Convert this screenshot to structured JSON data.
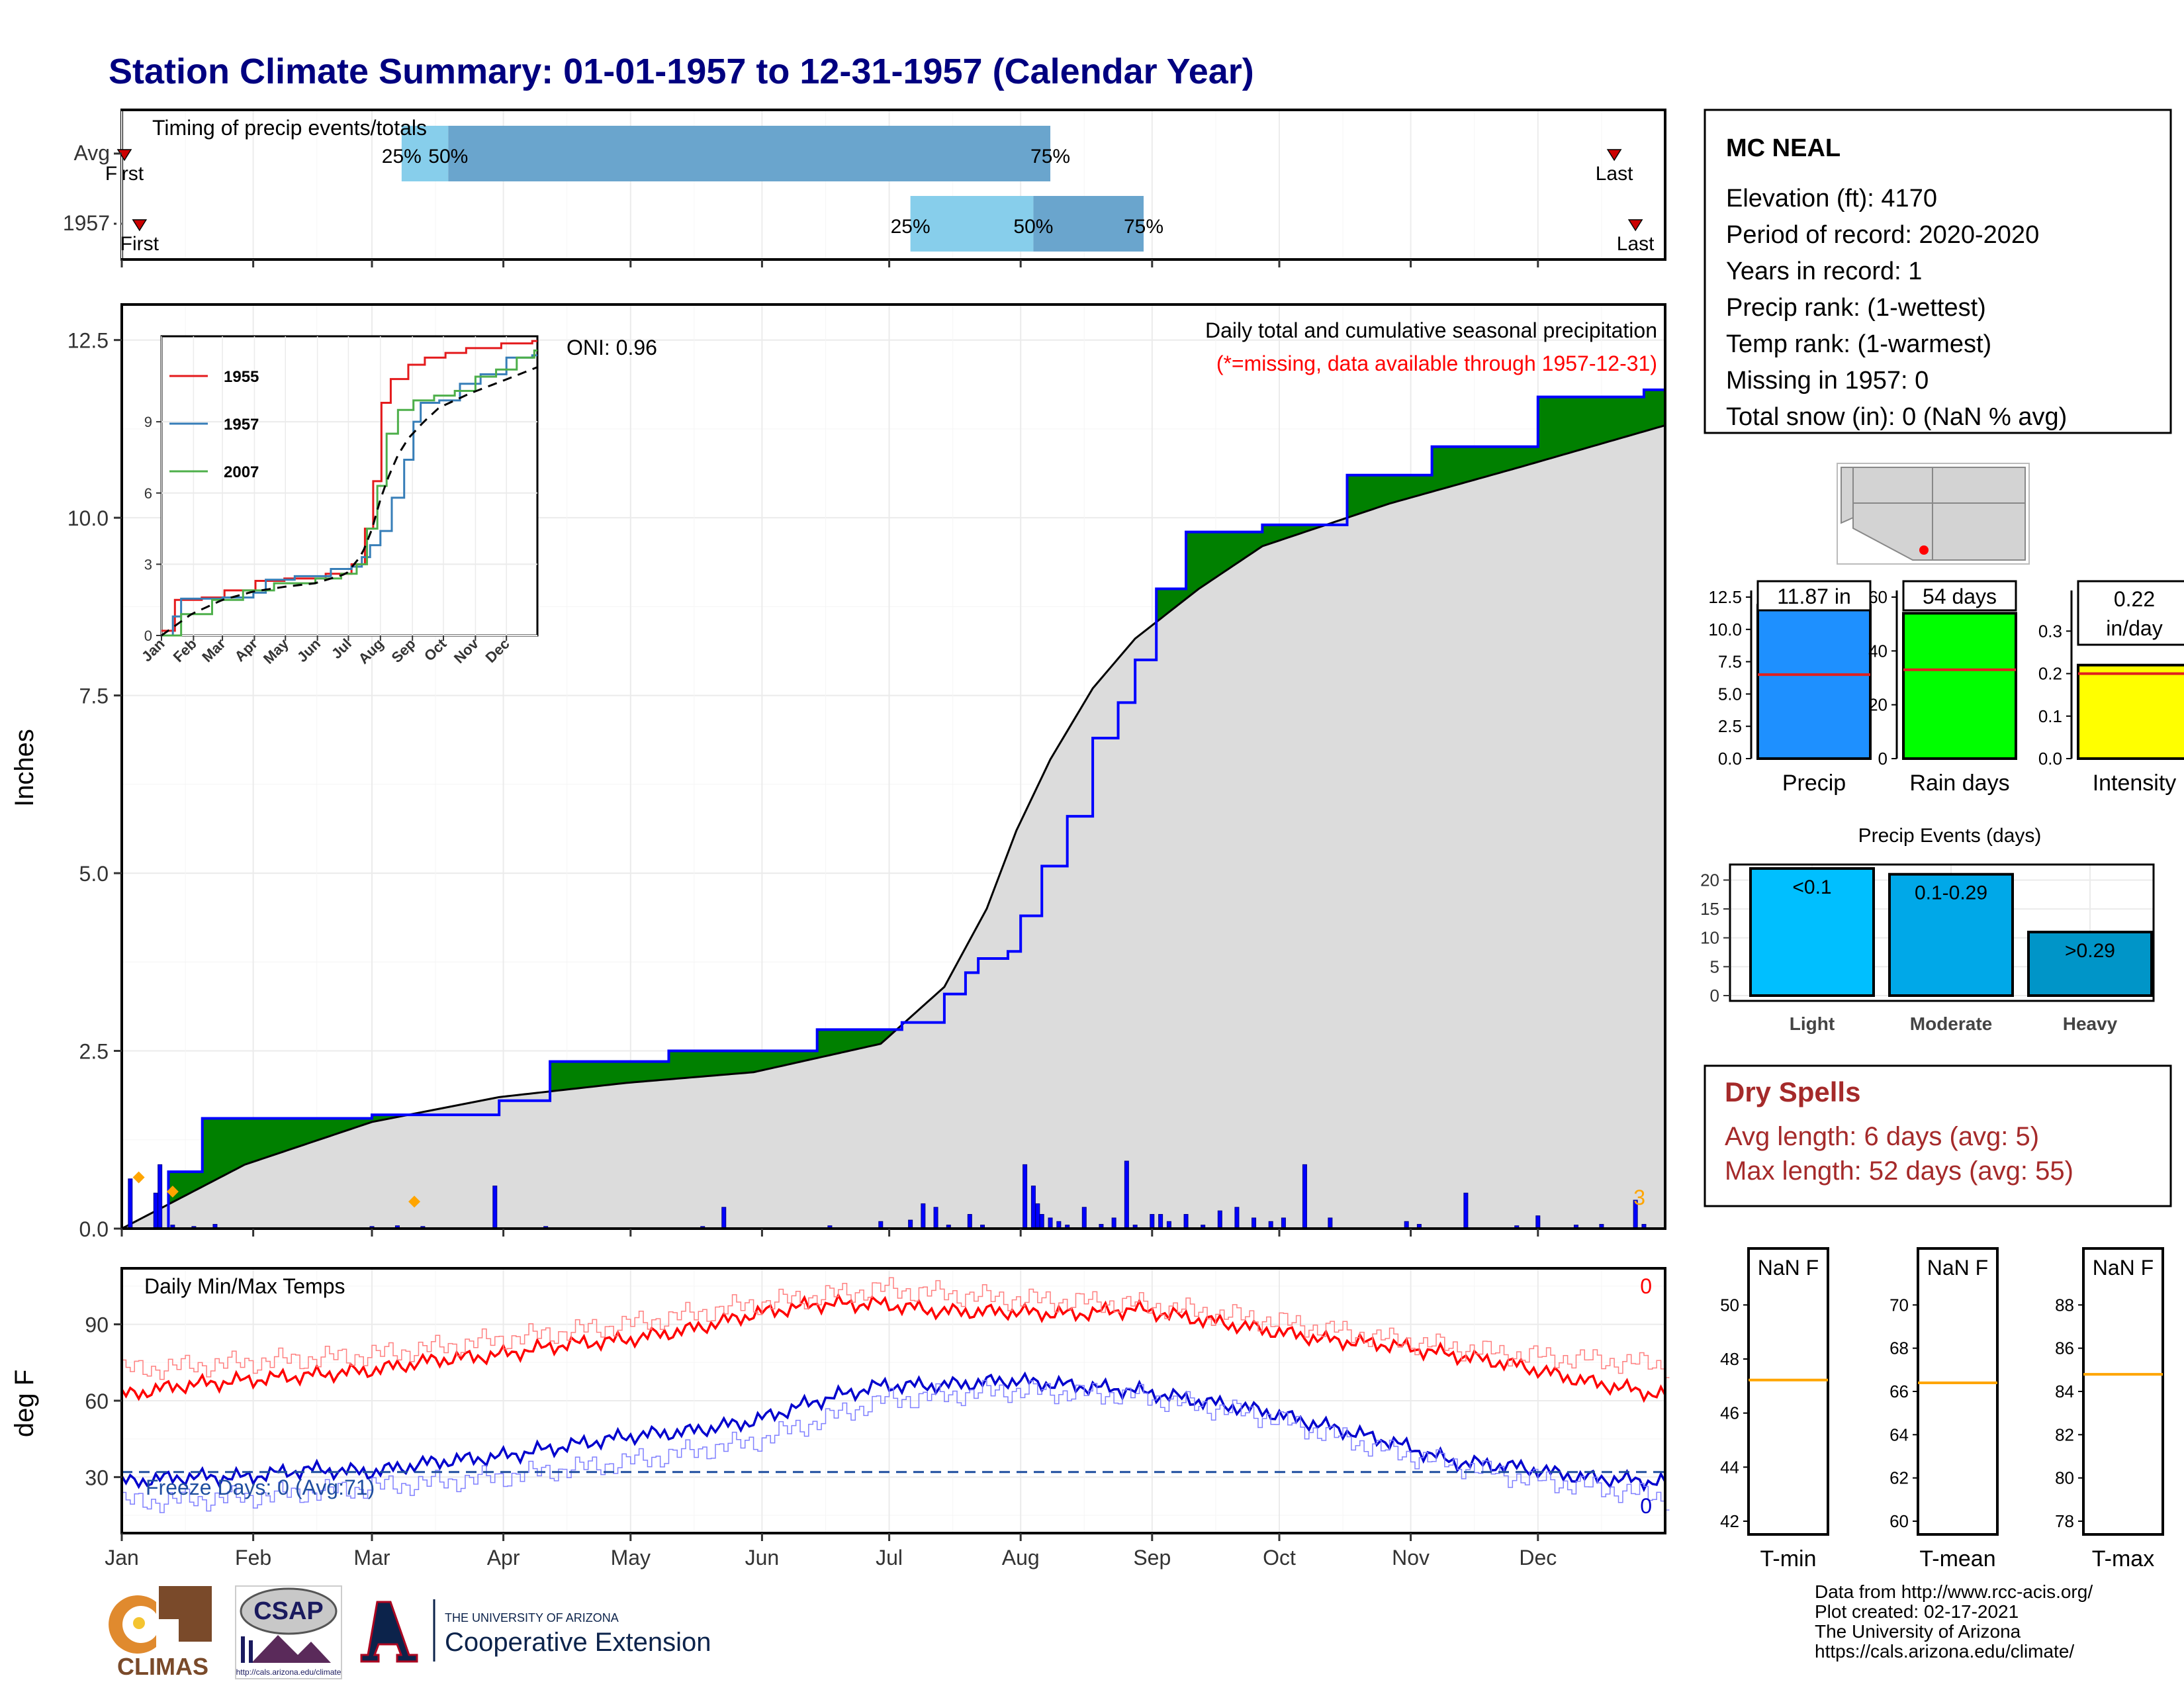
{
  "title": "Station Climate Summary: 01-01-1957 to 12-31-1957 (Calendar Year)",
  "colors": {
    "title": "#000080",
    "precip_fill": "#008000",
    "precip_line": "#0000ff",
    "avg_fill": "#dcdcdc",
    "tmax": "#ff0000",
    "tmin": "#0000cd",
    "freeze_line": "#1f4e9f",
    "dry": "#a52a2a",
    "timing_light": "#87ceeb",
    "timing_dark": "#6aa5cd",
    "orange": "#ffa500"
  },
  "months": [
    "Jan",
    "Feb",
    "Mar",
    "Apr",
    "May",
    "Jun",
    "Jul",
    "Aug",
    "Sep",
    "Oct",
    "Nov",
    "Dec"
  ],
  "timing": {
    "title": "Timing of precip events/totals",
    "rows": [
      {
        "label": "Avg",
        "first_label": "First",
        "last_label": "Last",
        "first_day": 1,
        "last_day": 353,
        "p25_day": 67,
        "p50_day": 78,
        "p75_day": 220,
        "p25_label": "25%",
        "p50_label": "50%",
        "p75_label": "75%"
      },
      {
        "label": "1957",
        "first_label": "First",
        "last_label": "Last",
        "first_day": 3,
        "last_day": 358,
        "p25_day": 187,
        "p50_day": 216,
        "p75_day": 242,
        "p25_label": "25%",
        "p50_label": "50%",
        "p75_label": "75%"
      }
    ]
  },
  "main": {
    "header": "Daily total and cumulative seasonal precipitation",
    "subheader": "(*=missing, data available through 1957-12-31)",
    "ylabel": "Inches",
    "oni": "ONI: 0.96",
    "corner_count": "3",
    "yticks": [
      "0.0",
      "2.5",
      "5.0",
      "7.5",
      "10.0",
      "12.5"
    ]
  },
  "inset": {
    "legend": [
      "1955",
      "1957",
      "2007"
    ],
    "yticks": [
      "0",
      "3",
      "6",
      "9"
    ]
  },
  "temps": {
    "title": "Daily Min/Max Temps",
    "ylabel": "deg F",
    "yticks": [
      "30",
      "60",
      "90"
    ],
    "max_count": "0",
    "min_count": "0",
    "freeze_text": "Freeze Days: 0 (Avg:71)"
  },
  "station": {
    "name": "MC NEAL",
    "lines": [
      "Elevation (ft): 4170",
      "Period of record: 2020-2020",
      "Years in record: 1",
      "Precip rank:  (1-wettest)",
      "Temp rank:  (1-warmest)",
      "Missing in 1957: 0",
      "Total snow (in): 0 (NaN % avg)"
    ]
  },
  "summary_bars": [
    {
      "label": "Precip",
      "value_text": "11.87 in",
      "color": "#1e90ff",
      "yticks": [
        "0.0",
        "2.5",
        "5.0",
        "7.5",
        "10.0",
        "12.5"
      ]
    },
    {
      "label": "Rain days",
      "value_text": "54 days",
      "color": "#00ff00",
      "yticks": [
        "0",
        "20",
        "40",
        "60"
      ]
    },
    {
      "label": "Intensity",
      "value_text": "0.22",
      "value_text2": "in/day",
      "color": "#ffff00",
      "yticks": [
        "0.0",
        "0.1",
        "0.2",
        "0.3"
      ]
    }
  ],
  "events": {
    "title": "Precip Events (days)",
    "yticks": [
      "0",
      "5",
      "10",
      "15",
      "20"
    ],
    "bars": [
      {
        "label": "Light",
        "inner": "<0.1",
        "color": "#00bfff"
      },
      {
        "label": "Moderate",
        "inner": "0.1-0.29",
        "color": "#00a8e8"
      },
      {
        "label": "Heavy",
        "inner": ">0.29",
        "color": "#0095c8"
      }
    ]
  },
  "dry": {
    "title": "Dry Spells",
    "avg": "Avg length: 6 days (avg: 5)",
    "max": "Max length: 52 days (avg: 55)"
  },
  "temp_boxes": [
    {
      "label": "T-min",
      "value_text": "NaN F",
      "yticks": [
        "42",
        "44",
        "46",
        "48",
        "50"
      ]
    },
    {
      "label": "T-mean",
      "value_text": "NaN F",
      "yticks": [
        "60",
        "62",
        "64",
        "66",
        "68",
        "70"
      ]
    },
    {
      "label": "T-max",
      "value_text": "NaN F",
      "yticks": [
        "78",
        "80",
        "82",
        "84",
        "86",
        "88"
      ]
    }
  ],
  "footer": {
    "lines": [
      "Data from http://www.rcc-acis.org/",
      "Plot created: 02-17-2021",
      "The University of Arizona",
      "https://cals.arizona.edu/climate/"
    ]
  },
  "logos": {
    "climas": "CLIMAS",
    "csap": "CSAP",
    "csap_url": "http://cals.arizona.edu/climate",
    "ua_small": "THE UNIVERSITY OF ARIZONA",
    "ua_big": "Cooperative Extension"
  },
  "chart_data": [
    {
      "type": "area",
      "name": "precip-cumulative",
      "title": "Daily total and cumulative seasonal precipitation",
      "ylabel": "Inches",
      "ylim": [
        0,
        13
      ],
      "x_unit": "day of year 1957",
      "cumulative_1957": {
        "x": [
          1,
          12,
          20,
          60,
          90,
          102,
          130,
          165,
          185,
          195,
          200,
          203,
          210,
          213,
          218,
          224,
          230,
          236,
          240,
          245,
          252,
          270,
          290,
          310,
          335,
          360
        ],
        "y": [
          0.0,
          0.8,
          1.55,
          1.6,
          1.8,
          2.35,
          2.5,
          2.8,
          2.9,
          3.3,
          3.6,
          3.8,
          3.9,
          4.4,
          5.1,
          5.8,
          6.9,
          7.4,
          8.0,
          9.0,
          9.8,
          9.9,
          10.6,
          11.0,
          11.7,
          11.8
        ]
      },
      "average": {
        "x": [
          1,
          30,
          60,
          90,
          120,
          150,
          180,
          195,
          205,
          212,
          220,
          230,
          240,
          255,
          270,
          300,
          330,
          365
        ],
        "y": [
          0.0,
          0.9,
          1.5,
          1.85,
          2.05,
          2.2,
          2.6,
          3.4,
          4.5,
          5.6,
          6.6,
          7.6,
          8.3,
          9.0,
          9.6,
          10.2,
          10.7,
          11.3
        ]
      },
      "daily_totals": {
        "x": [
          3,
          9,
          10,
          13,
          18,
          23,
          60,
          66,
          72,
          89,
          101,
          138,
          143,
          168,
          180,
          187,
          190,
          193,
          196,
          201,
          204,
          214,
          216,
          217,
          218,
          220,
          222,
          224,
          228,
          232,
          235,
          238,
          240,
          244,
          246,
          248,
          252,
          256,
          260,
          264,
          268,
          272,
          275,
          280,
          286,
          304,
          307,
          318,
          330,
          335,
          344,
          350,
          358,
          360
        ],
        "y": [
          0.7,
          0.5,
          0.9,
          0.05,
          0.03,
          0.06,
          0.03,
          0.04,
          0.03,
          0.6,
          0.03,
          0.03,
          0.3,
          0.04,
          0.1,
          0.12,
          0.35,
          0.3,
          0.05,
          0.2,
          0.05,
          0.9,
          0.6,
          0.35,
          0.2,
          0.15,
          0.1,
          0.05,
          0.3,
          0.06,
          0.15,
          0.95,
          0.05,
          0.2,
          0.2,
          0.1,
          0.2,
          0.05,
          0.25,
          0.3,
          0.15,
          0.1,
          0.15,
          0.9,
          0.15,
          0.1,
          0.06,
          0.5,
          0.04,
          0.18,
          0.05,
          0.06,
          0.4,
          0.06
        ]
      },
      "missing_markers_x": [
        5,
        13,
        70
      ]
    },
    {
      "type": "line",
      "name": "inset-cumulative",
      "ylim": [
        0,
        13
      ],
      "series": [
        {
          "name": "1955",
          "x": [
            1,
            14,
            40,
            62,
            92,
            120,
            160,
            185,
            198,
            206,
            214,
            223,
            240,
            256,
            276,
            296,
            330,
            360
          ],
          "y": [
            0.2,
            1.5,
            1.6,
            1.9,
            2.3,
            2.4,
            2.6,
            3.0,
            4.5,
            6.5,
            9.8,
            10.8,
            11.4,
            11.7,
            11.9,
            12.1,
            12.3,
            12.4
          ]
        },
        {
          "name": "1957",
          "x": [
            1,
            12,
            20,
            60,
            90,
            102,
            130,
            165,
            185,
            195,
            203,
            213,
            224,
            236,
            245,
            252,
            270,
            290,
            310,
            335,
            360
          ],
          "y": [
            0.0,
            0.8,
            1.55,
            1.6,
            1.8,
            2.35,
            2.5,
            2.8,
            2.9,
            3.3,
            3.8,
            4.4,
            5.8,
            7.4,
            9.0,
            9.8,
            9.9,
            10.6,
            11.0,
            11.7,
            11.8
          ]
        },
        {
          "name": "2007",
          "x": [
            1,
            20,
            50,
            80,
            110,
            150,
            175,
            190,
            200,
            210,
            219,
            230,
            245,
            265,
            285,
            305,
            325,
            345,
            362
          ],
          "y": [
            0.0,
            0.9,
            1.5,
            1.9,
            2.2,
            2.4,
            2.6,
            3.0,
            4.5,
            6.3,
            8.5,
            9.5,
            9.9,
            10.1,
            10.3,
            10.9,
            11.2,
            11.7,
            12.0
          ]
        }
      ],
      "average": {
        "x": [
          1,
          30,
          60,
          90,
          120,
          150,
          180,
          195,
          205,
          212,
          220,
          230,
          240,
          255,
          270,
          300,
          330,
          365
        ],
        "y": [
          0.0,
          0.9,
          1.5,
          1.85,
          2.05,
          2.2,
          2.6,
          3.4,
          4.5,
          5.6,
          6.6,
          7.6,
          8.3,
          9.0,
          9.6,
          10.2,
          10.7,
          11.3
        ]
      }
    },
    {
      "type": "line",
      "name": "daily-temps",
      "title": "Daily Min/Max Temps",
      "ylabel": "deg F",
      "ylim": [
        8,
        112
      ],
      "series": [
        {
          "name": "Tmax",
          "x": [
            1,
            15,
            30,
            45,
            60,
            75,
            90,
            105,
            120,
            135,
            150,
            165,
            180,
            195,
            210,
            225,
            240,
            255,
            270,
            285,
            300,
            315,
            330,
            345,
            365
          ],
          "y": [
            62,
            66,
            68,
            70,
            72,
            76,
            78,
            82,
            84,
            88,
            94,
            98,
            98,
            95,
            95,
            94,
            96,
            92,
            88,
            84,
            82,
            78,
            74,
            68,
            62
          ]
        },
        {
          "name": "Tmin",
          "x": [
            1,
            15,
            30,
            45,
            60,
            75,
            90,
            105,
            120,
            135,
            150,
            165,
            180,
            195,
            210,
            225,
            240,
            255,
            270,
            285,
            300,
            315,
            330,
            345,
            365
          ],
          "y": [
            28,
            30,
            30,
            33,
            32,
            36,
            38,
            42,
            46,
            48,
            52,
            60,
            66,
            66,
            68,
            66,
            64,
            60,
            56,
            50,
            44,
            36,
            34,
            30,
            28
          ]
        },
        {
          "name": "Tmax-normal",
          "x": [
            1,
            30,
            60,
            90,
            120,
            150,
            180,
            210,
            240,
            270,
            300,
            330,
            365
          ],
          "y": [
            72,
            75,
            78,
            84,
            90,
            98,
            104,
            100,
            98,
            92,
            84,
            78,
            74
          ]
        },
        {
          "name": "Tmin-normal",
          "x": [
            1,
            30,
            60,
            90,
            120,
            150,
            180,
            210,
            240,
            270,
            300,
            330,
            365
          ],
          "y": [
            20,
            22,
            26,
            30,
            36,
            44,
            60,
            64,
            62,
            54,
            40,
            30,
            22
          ]
        }
      ],
      "freeze_line": 32
    },
    {
      "type": "bar",
      "name": "summary-precip",
      "categories": [
        "Precip"
      ],
      "values": [
        11.87
      ],
      "average": 6.5,
      "ylim": [
        0,
        12.5
      ]
    },
    {
      "type": "bar",
      "name": "summary-raindays",
      "categories": [
        "Rain days"
      ],
      "values": [
        54
      ],
      "average": 33,
      "ylim": [
        0,
        60
      ]
    },
    {
      "type": "bar",
      "name": "summary-intensity",
      "categories": [
        "Intensity"
      ],
      "values": [
        0.22
      ],
      "average": 0.2,
      "ylim": [
        0,
        0.38
      ]
    },
    {
      "type": "bar",
      "name": "precip-events",
      "title": "Precip Events (days)",
      "categories": [
        "Light",
        "Moderate",
        "Heavy"
      ],
      "values": [
        22,
        21,
        11
      ],
      "ylim": [
        0,
        22
      ]
    }
  ]
}
